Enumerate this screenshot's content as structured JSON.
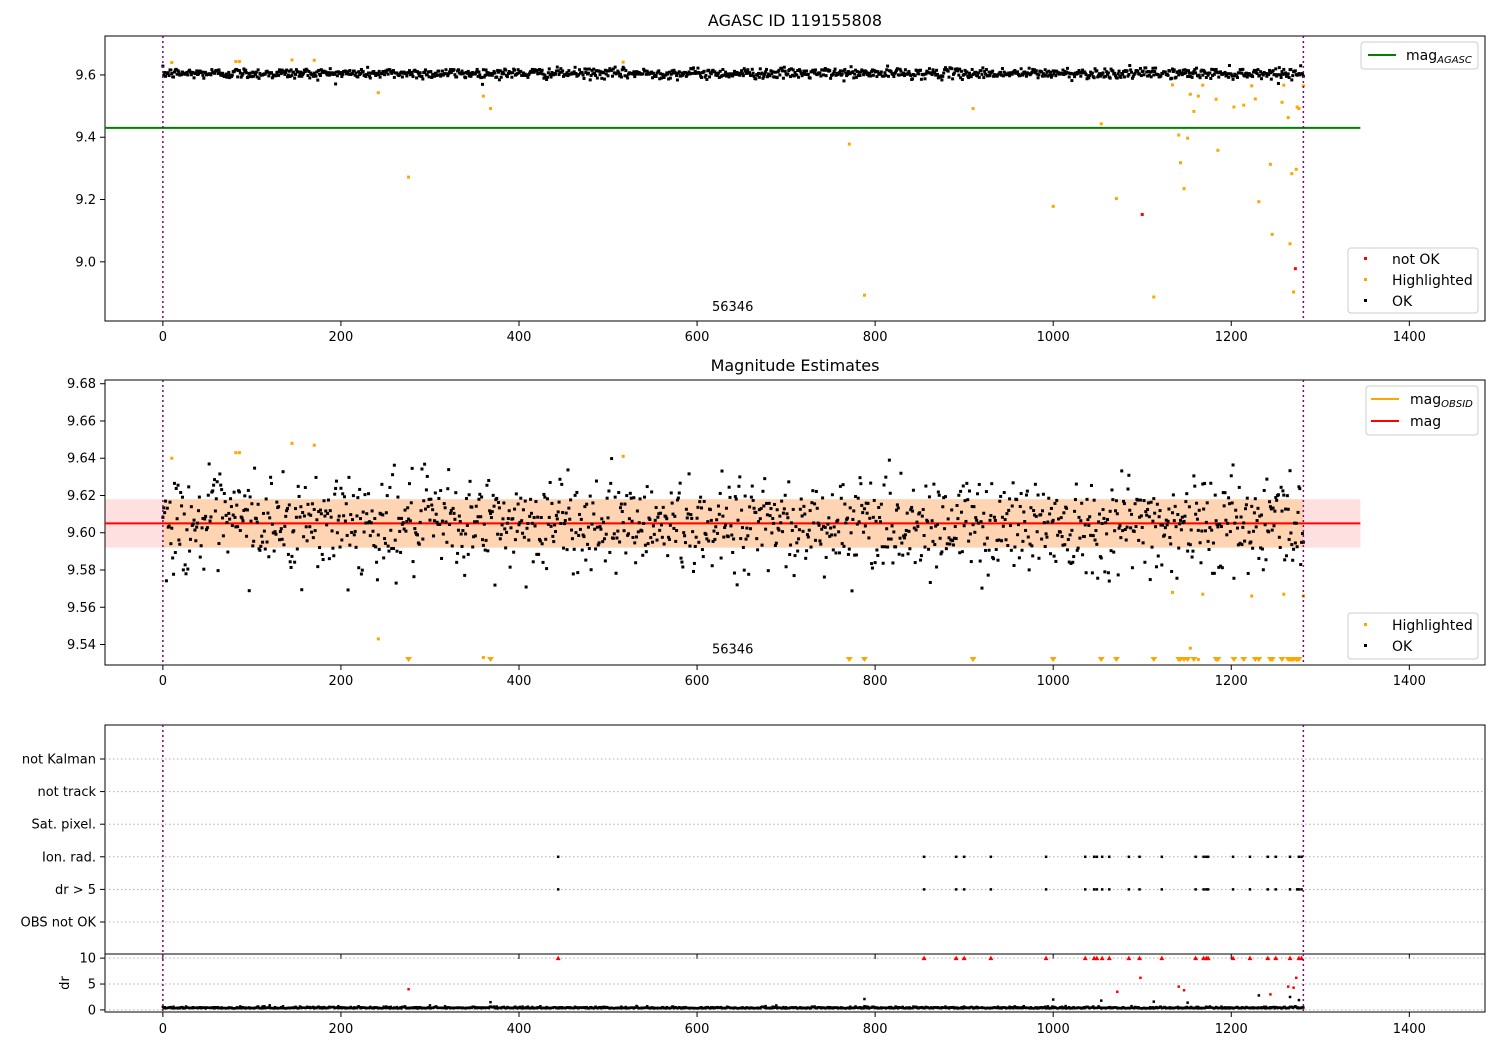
{
  "figure_title": "AGASC ID 119155808",
  "chart_data": [
    {
      "type": "scatter",
      "title": "AGASC ID 119155808",
      "xlim": [
        -65,
        1485
      ],
      "ylim": [
        8.81,
        9.725
      ],
      "x_ticks": [
        0,
        200,
        400,
        600,
        800,
        1000,
        1200,
        1400
      ],
      "x_tick_labels": [
        "0",
        "200",
        "400",
        "600",
        "800",
        "1000",
        "1200",
        "1400"
      ],
      "y_ticks": [
        9.0,
        9.2,
        9.4,
        9.6
      ],
      "y_tick_labels": [
        "9.0",
        "9.2",
        "9.4",
        "9.6"
      ],
      "vlines": [
        0,
        1281
      ],
      "obsid_label": {
        "text": "56346",
        "x": 640,
        "y": 8.83
      },
      "agasc_line": {
        "y": 9.43,
        "x_start": -65,
        "x_end": 1345,
        "color": "#008000"
      },
      "ok_series": {
        "name": "OK",
        "color": "#000000",
        "n": 1282,
        "center": 9.605,
        "spread": 0.012
      },
      "highlighted_points": [
        {
          "x": 10,
          "y": 9.64
        },
        {
          "x": 82,
          "y": 9.643
        },
        {
          "x": 86,
          "y": 9.643
        },
        {
          "x": 145,
          "y": 9.648
        },
        {
          "x": 170,
          "y": 9.647
        },
        {
          "x": 242,
          "y": 9.543
        },
        {
          "x": 276,
          "y": 9.272
        },
        {
          "x": 360,
          "y": 9.532
        },
        {
          "x": 368,
          "y": 9.492
        },
        {
          "x": 517,
          "y": 9.641
        },
        {
          "x": 771,
          "y": 9.378
        },
        {
          "x": 788,
          "y": 8.893
        },
        {
          "x": 910,
          "y": 9.492
        },
        {
          "x": 1000,
          "y": 9.178
        },
        {
          "x": 1054,
          "y": 9.443
        },
        {
          "x": 1071,
          "y": 9.203
        },
        {
          "x": 1113,
          "y": 8.887
        },
        {
          "x": 1134,
          "y": 9.568
        },
        {
          "x": 1141,
          "y": 9.407
        },
        {
          "x": 1143,
          "y": 9.318
        },
        {
          "x": 1147,
          "y": 9.235
        },
        {
          "x": 1151,
          "y": 9.397
        },
        {
          "x": 1154,
          "y": 9.538
        },
        {
          "x": 1158,
          "y": 9.483
        },
        {
          "x": 1163,
          "y": 9.532
        },
        {
          "x": 1168,
          "y": 9.567
        },
        {
          "x": 1183,
          "y": 9.522
        },
        {
          "x": 1185,
          "y": 9.358
        },
        {
          "x": 1203,
          "y": 9.497
        },
        {
          "x": 1214,
          "y": 9.503
        },
        {
          "x": 1223,
          "y": 9.565
        },
        {
          "x": 1227,
          "y": 9.523
        },
        {
          "x": 1231,
          "y": 9.193
        },
        {
          "x": 1244,
          "y": 9.313
        },
        {
          "x": 1246,
          "y": 9.088
        },
        {
          "x": 1257,
          "y": 9.512
        },
        {
          "x": 1259,
          "y": 9.567
        },
        {
          "x": 1264,
          "y": 9.463
        },
        {
          "x": 1266,
          "y": 9.058
        },
        {
          "x": 1268,
          "y": 9.283
        },
        {
          "x": 1270,
          "y": 8.903
        },
        {
          "x": 1273,
          "y": 9.297
        },
        {
          "x": 1274,
          "y": 9.497
        },
        {
          "x": 1276,
          "y": 9.492
        },
        {
          "x": 1281,
          "y": 9.565
        }
      ],
      "not_ok_points": [
        {
          "x": 1100,
          "y": 9.152
        },
        {
          "x": 1272,
          "y": 8.978
        }
      ],
      "legend_upper": {
        "mag_label": "mag",
        "mag_sub": "AGASC"
      },
      "legend_lower": [
        "not OK",
        "Highlighted",
        "OK"
      ],
      "colors": {
        "ok": "#000000",
        "highlighted": "#ffa500",
        "not_ok": "#ff0000",
        "vline": "#800080"
      }
    },
    {
      "type": "scatter",
      "title": "Magnitude Estimates",
      "xlim": [
        -65,
        1485
      ],
      "ylim": [
        9.529,
        9.682
      ],
      "x_ticks": [
        0,
        200,
        400,
        600,
        800,
        1000,
        1200,
        1400
      ],
      "x_tick_labels": [
        "0",
        "200",
        "400",
        "600",
        "800",
        "1000",
        "1200",
        "1400"
      ],
      "y_ticks": [
        9.54,
        9.56,
        9.58,
        9.6,
        9.62,
        9.64,
        9.66,
        9.68
      ],
      "y_tick_labels": [
        "9.54",
        "9.56",
        "9.58",
        "9.60",
        "9.62",
        "9.64",
        "9.66",
        "9.68"
      ],
      "vlines": [
        0,
        1281
      ],
      "obsid_label": {
        "text": "56346",
        "x": 640,
        "y": 9.531
      },
      "mag_line": {
        "y": 9.605,
        "x_start": -65,
        "x_end": 1345,
        "color": "#ff0000"
      },
      "mag_band": {
        "y_low": 9.592,
        "y_high": 9.618,
        "x_start": -65,
        "x_end": 1345
      },
      "obsid_line": {
        "y": 9.605,
        "x_start": 0,
        "x_end": 1281,
        "color": "#ffa500"
      },
      "obsid_band": {
        "y_low": 9.592,
        "y_high": 9.618,
        "x_start": 0,
        "x_end": 1281
      },
      "ok_series": {
        "name": "OK",
        "color": "#000000",
        "n": 1282,
        "center": 9.605,
        "spread": 0.013
      },
      "highlighted_points": [
        {
          "x": 10,
          "y": 9.64
        },
        {
          "x": 82,
          "y": 9.643
        },
        {
          "x": 86,
          "y": 9.643
        },
        {
          "x": 145,
          "y": 9.648
        },
        {
          "x": 170,
          "y": 9.647
        },
        {
          "x": 242,
          "y": 9.543
        },
        {
          "x": 360,
          "y": 9.533
        },
        {
          "x": 517,
          "y": 9.641
        },
        {
          "x": 1134,
          "y": 9.568
        },
        {
          "x": 1154,
          "y": 9.538
        },
        {
          "x": 1163,
          "y": 9.532
        },
        {
          "x": 1168,
          "y": 9.567
        },
        {
          "x": 1223,
          "y": 9.566
        },
        {
          "x": 1259,
          "y": 9.567
        },
        {
          "x": 1281,
          "y": 9.566
        }
      ],
      "offscale_markers_x": [
        276,
        368,
        771,
        788,
        910,
        1000,
        1054,
        1071,
        1113,
        1141,
        1143,
        1147,
        1151,
        1158,
        1183,
        1185,
        1203,
        1214,
        1227,
        1231,
        1244,
        1246,
        1257,
        1264,
        1266,
        1268,
        1270,
        1273,
        1274,
        1276
      ],
      "legend_upper": [
        {
          "label": "mag",
          "sub": "OBSID"
        },
        {
          "label": "mag",
          "sub": ""
        }
      ],
      "legend_lower": [
        "Highlighted",
        "OK"
      ],
      "colors": {
        "ok": "#000000",
        "highlighted": "#ffa500",
        "mag": "#ff0000",
        "obsid": "#ffa500",
        "vline": "#800080"
      }
    },
    {
      "type": "scatter",
      "title": "",
      "xlim": [
        -65,
        1485
      ],
      "x_ticks": [
        0,
        200,
        400,
        600,
        800,
        1000,
        1200,
        1400
      ],
      "x_tick_labels": [
        "0",
        "200",
        "400",
        "600",
        "800",
        "1000",
        "1200",
        "1400"
      ],
      "vlines": [
        0,
        1281
      ],
      "flag_rows": [
        "not Kalman",
        "not track",
        "Sat. pixel.",
        "Ion. rad.",
        "dr > 5",
        "OBS not OK"
      ],
      "flag_points": {
        "Ion. rad.": [
          444,
          855,
          891,
          900,
          930,
          992,
          1036,
          1046,
          1049,
          1055,
          1063,
          1085,
          1097,
          1122,
          1160,
          1169,
          1172,
          1174,
          1202,
          1221,
          1241,
          1250,
          1266,
          1276,
          1279
        ],
        "dr > 5": [
          444,
          855,
          891,
          900,
          930,
          992,
          1036,
          1046,
          1049,
          1055,
          1063,
          1085,
          1097,
          1122,
          1160,
          1169,
          1172,
          1174,
          1202,
          1221,
          1241,
          1250,
          1266,
          1274,
          1276,
          1279
        ]
      },
      "dr_axis": {
        "ylabel": "dr",
        "ylim": [
          -0.4,
          10.8
        ],
        "y_ticks": [
          0,
          5,
          10
        ],
        "y_tick_labels": [
          "0",
          "5",
          "10"
        ]
      },
      "dr_capped_x": [
        444,
        855,
        891,
        900,
        930,
        992,
        1036,
        1046,
        1049,
        1055,
        1063,
        1085,
        1097,
        1122,
        1160,
        1169,
        1172,
        1174,
        1202,
        1221,
        1241,
        1250,
        1266,
        1276,
        1279
      ],
      "dr_red_points": [
        {
          "x": 276,
          "y": 4.0
        },
        {
          "x": 1072,
          "y": 3.5
        },
        {
          "x": 1098,
          "y": 6.2
        },
        {
          "x": 1141,
          "y": 4.5
        },
        {
          "x": 1147,
          "y": 3.8
        },
        {
          "x": 1244,
          "y": 3.0
        },
        {
          "x": 1264,
          "y": 4.5
        },
        {
          "x": 1270,
          "y": 4.3
        },
        {
          "x": 1273,
          "y": 6.2
        }
      ],
      "dr_baseline": {
        "n": 1282,
        "center": 0.3,
        "spread": 0.15
      },
      "dr_black_outliers": [
        {
          "x": 368,
          "y": 1.5
        },
        {
          "x": 788,
          "y": 2.1
        },
        {
          "x": 1000,
          "y": 2.0
        },
        {
          "x": 1054,
          "y": 1.8
        },
        {
          "x": 1113,
          "y": 1.6
        },
        {
          "x": 1151,
          "y": 1.4
        },
        {
          "x": 1231,
          "y": 2.8
        },
        {
          "x": 1266,
          "y": 2.5
        },
        {
          "x": 1276,
          "y": 1.9
        }
      ],
      "colors": {
        "flag": "#000000",
        "dr_capped": "#ff0000",
        "dr_red": "#ff0000",
        "dr_ok": "#000000",
        "vline": "#800080",
        "grid": "#b0b0b0"
      }
    }
  ]
}
